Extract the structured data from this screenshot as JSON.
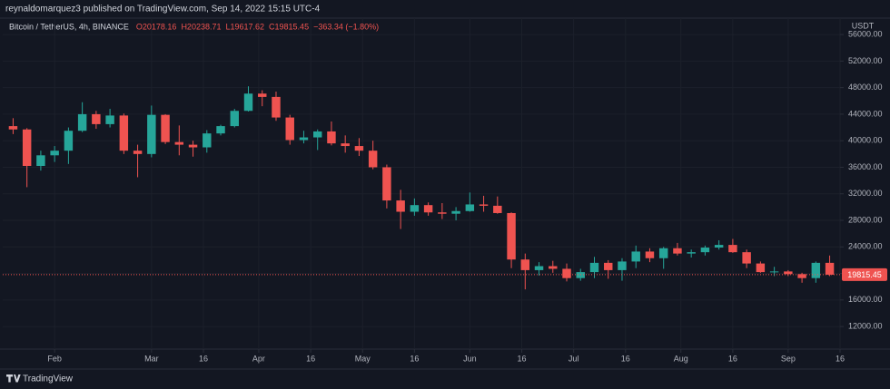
{
  "header": {
    "publisher": "reynaldomarquez3 published on TradingView.com, Sep 14, 2022 15:15 UTC-4"
  },
  "footer": {
    "logo": "TradingView"
  },
  "chart_data": {
    "type": "candlestick",
    "symbol": "Bitcoin / TetherUS, 4h, BINANCE",
    "legend_values": [
      "O20178.16",
      "H20238.71",
      "L19617.62",
      "C19815.45",
      "−363.34 (−1.80%)"
    ],
    "y_axis_label": "USDT",
    "up_color": "#26a69a",
    "down_color": "#ef5350",
    "grid": true,
    "last_price": 19815.45,
    "x": [
      "2022-01-18",
      "2022-01-22",
      "2022-01-26",
      "2022-01-30",
      "2022-02-03",
      "2022-02-07",
      "2022-02-11",
      "2022-02-15",
      "2022-02-19",
      "2022-02-23",
      "2022-02-27",
      "2022-03-03",
      "2022-03-07",
      "2022-03-11",
      "2022-03-15",
      "2022-03-19",
      "2022-03-23",
      "2022-03-27",
      "2022-03-31",
      "2022-04-04",
      "2022-04-08",
      "2022-04-12",
      "2022-04-16",
      "2022-04-20",
      "2022-04-24",
      "2022-04-28",
      "2022-05-02",
      "2022-05-06",
      "2022-05-10",
      "2022-05-14",
      "2022-05-18",
      "2022-05-22",
      "2022-05-26",
      "2022-05-30",
      "2022-06-03",
      "2022-06-07",
      "2022-06-11",
      "2022-06-15",
      "2022-06-19",
      "2022-06-23",
      "2022-06-27",
      "2022-07-01",
      "2022-07-05",
      "2022-07-09",
      "2022-07-13",
      "2022-07-17",
      "2022-07-21",
      "2022-07-25",
      "2022-07-29",
      "2022-08-02",
      "2022-08-06",
      "2022-08-10",
      "2022-08-14",
      "2022-08-18",
      "2022-08-22",
      "2022-08-26",
      "2022-08-30",
      "2022-09-03",
      "2022-09-07",
      "2022-09-11"
    ],
    "series": {
      "open": [
        42200,
        41700,
        36200,
        37800,
        38500,
        41500,
        44000,
        42500,
        43800,
        38500,
        38000,
        43900,
        39800,
        39400,
        39000,
        41100,
        42200,
        44500,
        47100,
        46600,
        43500,
        40100,
        40500,
        41400,
        39600,
        39200,
        38500,
        36000,
        31000,
        29300,
        30300,
        29200,
        29000,
        29400,
        30400,
        30200,
        29100,
        22100,
        20500,
        21100,
        20700,
        19300,
        20200,
        21600,
        20500,
        21800,
        23300,
        22300,
        23800,
        23000,
        23200,
        23900,
        24300,
        23200,
        21500,
        20200,
        20300,
        19900,
        19300,
        21600
      ],
      "high": [
        43400,
        41900,
        38500,
        39200,
        42000,
        45800,
        44500,
        44800,
        44100,
        39400,
        45300,
        44000,
        42300,
        40000,
        41600,
        42400,
        44800,
        48200,
        47600,
        47400,
        43900,
        41500,
        41700,
        42900,
        40800,
        40400,
        40000,
        36400,
        32600,
        31300,
        30700,
        30600,
        30000,
        32200,
        31700,
        31600,
        29200,
        23000,
        21700,
        21900,
        21500,
        20700,
        22500,
        22000,
        22300,
        24200,
        23800,
        24000,
        24600,
        23600,
        24200,
        25000,
        25200,
        23600,
        21800,
        21000,
        20500,
        20100,
        21800,
        22700
      ],
      "low": [
        41000,
        33000,
        35500,
        36800,
        36500,
        41300,
        41800,
        42000,
        38000,
        34500,
        37500,
        39500,
        37800,
        37600,
        38200,
        40800,
        42000,
        44400,
        45200,
        43000,
        39400,
        39600,
        38600,
        39300,
        38200,
        37700,
        35700,
        29800,
        26700,
        28700,
        28700,
        28200,
        28000,
        29300,
        29300,
        29000,
        20800,
        17600,
        19700,
        20100,
        18800,
        18900,
        19300,
        19200,
        18900,
        20800,
        21700,
        20700,
        22700,
        22400,
        22700,
        23600,
        23100,
        20800,
        20100,
        19600,
        19600,
        18600,
        18600,
        19600
      ],
      "close": [
        41700,
        36200,
        37800,
        38500,
        41500,
        44000,
        42500,
        43800,
        38500,
        38000,
        43900,
        39800,
        39400,
        39000,
        41100,
        42200,
        44500,
        47100,
        46600,
        43500,
        40100,
        40500,
        41400,
        39600,
        39200,
        38500,
        36000,
        31000,
        29300,
        30300,
        29200,
        29000,
        29400,
        30400,
        30200,
        29100,
        22100,
        20500,
        21100,
        20700,
        19300,
        20200,
        21600,
        20500,
        21800,
        23300,
        22300,
        23800,
        23000,
        23200,
        23900,
        24300,
        23200,
        21500,
        20200,
        20300,
        19900,
        19300,
        21600,
        19815.45
      ]
    },
    "xlim": [
      "2022-01-17",
      "2022-09-16"
    ],
    "xticks": [
      {
        "value": "2022-02-01",
        "label": "Feb"
      },
      {
        "value": "2022-03-01",
        "label": "Mar"
      },
      {
        "value": "2022-03-16",
        "label": "16"
      },
      {
        "value": "2022-04-01",
        "label": "Apr"
      },
      {
        "value": "2022-04-16",
        "label": "16"
      },
      {
        "value": "2022-05-01",
        "label": "May"
      },
      {
        "value": "2022-05-16",
        "label": "16"
      },
      {
        "value": "2022-06-01",
        "label": "Jun"
      },
      {
        "value": "2022-06-16",
        "label": "16"
      },
      {
        "value": "2022-07-01",
        "label": "Jul"
      },
      {
        "value": "2022-07-16",
        "label": "16"
      },
      {
        "value": "2022-08-01",
        "label": "Aug"
      },
      {
        "value": "2022-08-16",
        "label": "16"
      },
      {
        "value": "2022-09-01",
        "label": "Sep"
      },
      {
        "value": "2022-09-16",
        "label": "16"
      }
    ],
    "ylim": [
      8600,
      58200
    ],
    "yticks": [
      {
        "value": 12000,
        "label": "12000.00"
      },
      {
        "value": 16000,
        "label": "16000.00"
      },
      {
        "value": 20000,
        "label": "20000.00"
      },
      {
        "value": 24000,
        "label": "24000.00"
      },
      {
        "value": 28000,
        "label": "28000.00"
      },
      {
        "value": 32000,
        "label": "32000.00"
      },
      {
        "value": 36000,
        "label": "36000.00"
      },
      {
        "value": 40000,
        "label": "40000.00"
      },
      {
        "value": 44000,
        "label": "44000.00"
      },
      {
        "value": 48000,
        "label": "48000.00"
      },
      {
        "value": 52000,
        "label": "52000.00"
      },
      {
        "value": 56000,
        "label": "56000.00"
      }
    ]
  }
}
